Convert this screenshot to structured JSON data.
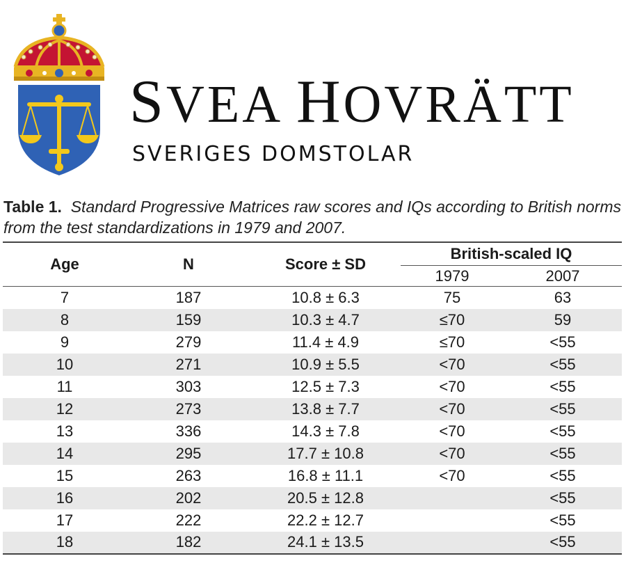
{
  "brand": {
    "title": "Svea hovrätt",
    "title_first": "S",
    "title_rest1": "VEA ",
    "title_h": "H",
    "title_rest2": "OVRÄTT",
    "subtitle": "SVERIGES DOMSTOLAR"
  },
  "emblem": {
    "icon": "coat-of-arms-crown-scales-sword",
    "colors": {
      "shield": "#2f62b5",
      "gold": "#f3c81b",
      "crown_red": "#c41433",
      "crown_gold": "#e8b423"
    }
  },
  "caption": {
    "label": "Table 1.",
    "text": "Standard Progressive Matrices raw scores and IQs according to British norms from the test standardizations in 1979 and 2007."
  },
  "table": {
    "headers": {
      "age": "Age",
      "n": "N",
      "score": "Score ± SD",
      "group": "British-scaled IQ",
      "y1979": "1979",
      "y2007": "2007"
    },
    "rows": [
      {
        "age": "7",
        "n": "187",
        "score": "10.8 ± 6.3",
        "iq1979": "75",
        "iq2007": "63"
      },
      {
        "age": "8",
        "n": "159",
        "score": "10.3 ± 4.7",
        "iq1979": "≤70",
        "iq2007": "59"
      },
      {
        "age": "9",
        "n": "279",
        "score": "11.4 ± 4.9",
        "iq1979": "≤70",
        "iq2007": "<55"
      },
      {
        "age": "10",
        "n": "271",
        "score": "10.9 ± 5.5",
        "iq1979": "<70",
        "iq2007": "<55"
      },
      {
        "age": "11",
        "n": "303",
        "score": "12.5 ± 7.3",
        "iq1979": "<70",
        "iq2007": "<55"
      },
      {
        "age": "12",
        "n": "273",
        "score": "13.8 ± 7.7",
        "iq1979": "<70",
        "iq2007": "<55"
      },
      {
        "age": "13",
        "n": "336",
        "score": "14.3 ± 7.8",
        "iq1979": "<70",
        "iq2007": "<55"
      },
      {
        "age": "14",
        "n": "295",
        "score": "17.7 ± 10.8",
        "iq1979": "<70",
        "iq2007": "<55"
      },
      {
        "age": "15",
        "n": "263",
        "score": "16.8 ± 11.1",
        "iq1979": "<70",
        "iq2007": "<55"
      },
      {
        "age": "16",
        "n": "202",
        "score": "20.5 ± 12.8",
        "iq1979": "",
        "iq2007": "<55"
      },
      {
        "age": "17",
        "n": "222",
        "score": "22.2 ± 12.7",
        "iq1979": "",
        "iq2007": "<55"
      },
      {
        "age": "18",
        "n": "182",
        "score": "24.1 ± 13.5",
        "iq1979": "",
        "iq2007": "<55"
      }
    ]
  }
}
